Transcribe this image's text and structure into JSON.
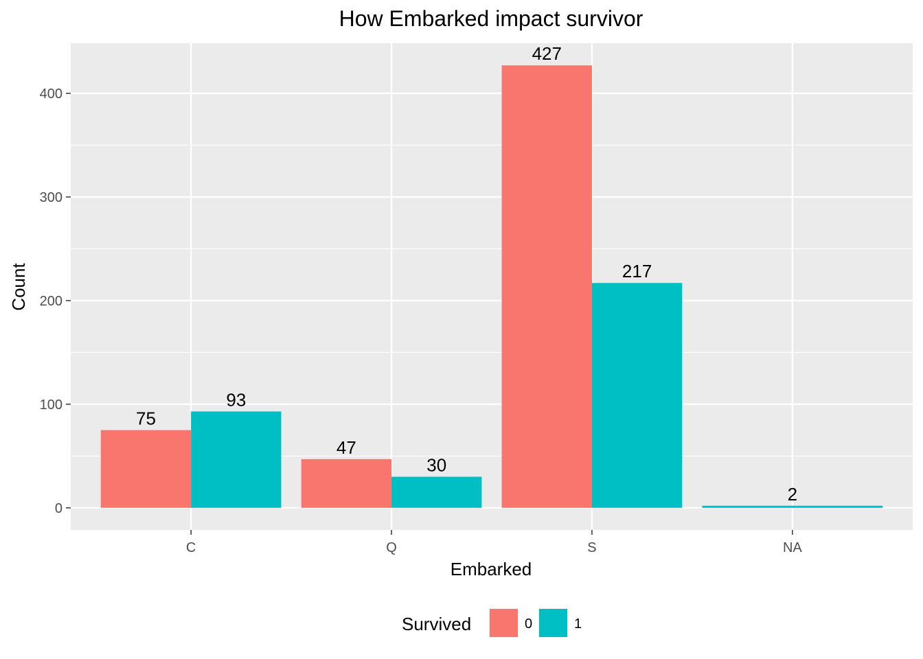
{
  "chart_data": {
    "type": "bar",
    "title": "How Embarked impact survivor",
    "xlabel": "Embarked",
    "ylabel": "Count",
    "categories": [
      "C",
      "Q",
      "S",
      "NA"
    ],
    "ylim": [
      -21.35,
      448.35
    ],
    "yticks": [
      0,
      100,
      200,
      300,
      400
    ],
    "grid": true,
    "legend": {
      "title": "Survived",
      "position": "bottom"
    },
    "series": [
      {
        "name": "0",
        "color": "#F8766D",
        "values": [
          75,
          47,
          427,
          null
        ]
      },
      {
        "name": "1",
        "color": "#00BFC4",
        "values": [
          93,
          30,
          217,
          2
        ]
      }
    ]
  }
}
